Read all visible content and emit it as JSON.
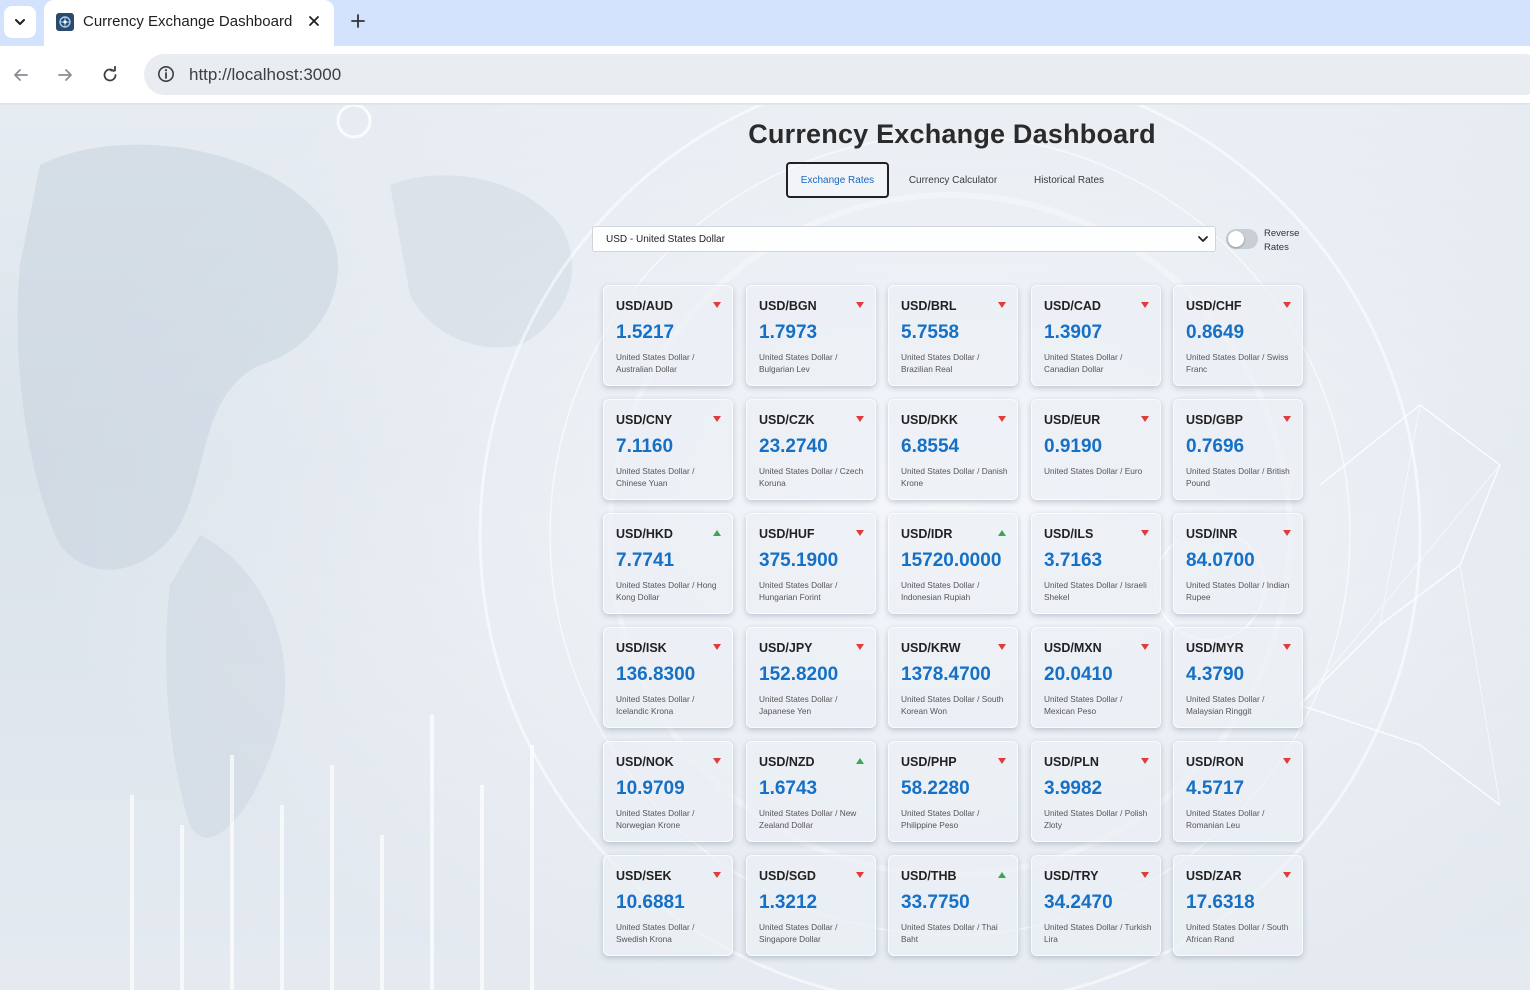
{
  "browser": {
    "tab_title": "Currency Exchange Dashboard",
    "url": "http://localhost:3000",
    "icons": {
      "tab_list": "chevron-down-icon",
      "favicon": "globe-network-icon",
      "close": "close-icon",
      "new_tab": "plus-icon",
      "back": "back-arrow-icon",
      "forward": "forward-arrow-icon",
      "reload": "reload-icon",
      "site_info": "info-icon"
    }
  },
  "header": {
    "title": "Currency Exchange Dashboard"
  },
  "tabs": [
    {
      "label": "Exchange Rates",
      "active": true
    },
    {
      "label": "Currency Calculator",
      "active": false
    },
    {
      "label": "Historical Rates",
      "active": false
    }
  ],
  "controls": {
    "base_currency": "USD - United States Dollar",
    "reverse_label": "Reverse Rates",
    "reverse_enabled": false
  },
  "colors": {
    "rate": "#1570c6",
    "trend_up": "#3aa757",
    "trend_down": "#e03c3c",
    "active_tab_text": "#1768c4"
  },
  "rates": [
    {
      "pair": "USD/AUD",
      "rate": "1.5217",
      "desc": "United States Dollar / Australian Dollar",
      "trend": "down"
    },
    {
      "pair": "USD/BGN",
      "rate": "1.7973",
      "desc": "United States Dollar / Bulgarian Lev",
      "trend": "down"
    },
    {
      "pair": "USD/BRL",
      "rate": "5.7558",
      "desc": "United States Dollar / Brazilian Real",
      "trend": "down"
    },
    {
      "pair": "USD/CAD",
      "rate": "1.3907",
      "desc": "United States Dollar / Canadian Dollar",
      "trend": "down"
    },
    {
      "pair": "USD/CHF",
      "rate": "0.8649",
      "desc": "United States Dollar / Swiss Franc",
      "trend": "down"
    },
    {
      "pair": "USD/CNY",
      "rate": "7.1160",
      "desc": "United States Dollar / Chinese Yuan",
      "trend": "down"
    },
    {
      "pair": "USD/CZK",
      "rate": "23.2740",
      "desc": "United States Dollar / Czech Koruna",
      "trend": "down"
    },
    {
      "pair": "USD/DKK",
      "rate": "6.8554",
      "desc": "United States Dollar / Danish Krone",
      "trend": "down"
    },
    {
      "pair": "USD/EUR",
      "rate": "0.9190",
      "desc": "United States Dollar / Euro",
      "trend": "down"
    },
    {
      "pair": "USD/GBP",
      "rate": "0.7696",
      "desc": "United States Dollar / British Pound",
      "trend": "down"
    },
    {
      "pair": "USD/HKD",
      "rate": "7.7741",
      "desc": "United States Dollar / Hong Kong Dollar",
      "trend": "up"
    },
    {
      "pair": "USD/HUF",
      "rate": "375.1900",
      "desc": "United States Dollar / Hungarian Forint",
      "trend": "down"
    },
    {
      "pair": "USD/IDR",
      "rate": "15720.0000",
      "desc": "United States Dollar / Indonesian Rupiah",
      "trend": "up"
    },
    {
      "pair": "USD/ILS",
      "rate": "3.7163",
      "desc": "United States Dollar / Israeli Shekel",
      "trend": "down"
    },
    {
      "pair": "USD/INR",
      "rate": "84.0700",
      "desc": "United States Dollar / Indian Rupee",
      "trend": "down"
    },
    {
      "pair": "USD/ISK",
      "rate": "136.8300",
      "desc": "United States Dollar / Icelandic Krona",
      "trend": "down"
    },
    {
      "pair": "USD/JPY",
      "rate": "152.8200",
      "desc": "United States Dollar / Japanese Yen",
      "trend": "down"
    },
    {
      "pair": "USD/KRW",
      "rate": "1378.4700",
      "desc": "United States Dollar / South Korean Won",
      "trend": "down"
    },
    {
      "pair": "USD/MXN",
      "rate": "20.0410",
      "desc": "United States Dollar / Mexican Peso",
      "trend": "down"
    },
    {
      "pair": "USD/MYR",
      "rate": "4.3790",
      "desc": "United States Dollar / Malaysian Ringgit",
      "trend": "down"
    },
    {
      "pair": "USD/NOK",
      "rate": "10.9709",
      "desc": "United States Dollar / Norwegian Krone",
      "trend": "down"
    },
    {
      "pair": "USD/NZD",
      "rate": "1.6743",
      "desc": "United States Dollar / New Zealand Dollar",
      "trend": "up"
    },
    {
      "pair": "USD/PHP",
      "rate": "58.2280",
      "desc": "United States Dollar / Philippine Peso",
      "trend": "down"
    },
    {
      "pair": "USD/PLN",
      "rate": "3.9982",
      "desc": "United States Dollar / Polish Zloty",
      "trend": "down"
    },
    {
      "pair": "USD/RON",
      "rate": "4.5717",
      "desc": "United States Dollar / Romanian Leu",
      "trend": "down"
    },
    {
      "pair": "USD/SEK",
      "rate": "10.6881",
      "desc": "United States Dollar / Swedish Krona",
      "trend": "down"
    },
    {
      "pair": "USD/SGD",
      "rate": "1.3212",
      "desc": "United States Dollar / Singapore Dollar",
      "trend": "down"
    },
    {
      "pair": "USD/THB",
      "rate": "33.7750",
      "desc": "United States Dollar / Thai Baht",
      "trend": "up"
    },
    {
      "pair": "USD/TRY",
      "rate": "34.2470",
      "desc": "United States Dollar / Turkish Lira",
      "trend": "down"
    },
    {
      "pair": "USD/ZAR",
      "rate": "17.6318",
      "desc": "United States Dollar / South African Rand",
      "trend": "down"
    }
  ]
}
